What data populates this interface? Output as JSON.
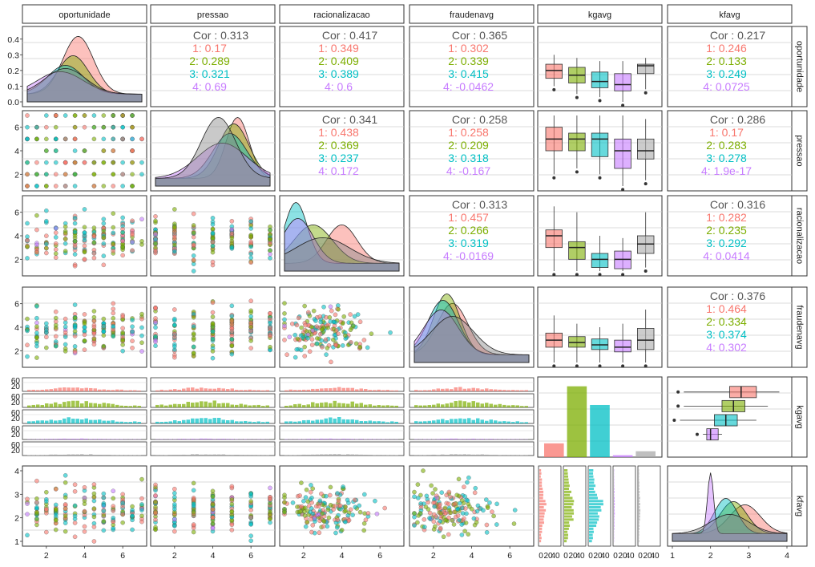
{
  "chart_data": {
    "type": "scatterplot-matrix",
    "variables": [
      "oportunidade",
      "pressao",
      "racionalizacao",
      "fraudenavg",
      "kgavg",
      "kfavg"
    ],
    "groups": [
      "1",
      "2",
      "3",
      "4"
    ],
    "colors": {
      "1": "#F8766D",
      "2": "#7CAE00",
      "3": "#00BFC4",
      "4": "#C77CFF",
      "all": "#999999",
      "text": "#555555"
    },
    "correlations": [
      {
        "row": 0,
        "col": 1,
        "overall": "Cor : 0.313",
        "groups": [
          "1: 0.17",
          "2: 0.289",
          "3: 0.321",
          "4: 0.69"
        ]
      },
      {
        "row": 0,
        "col": 2,
        "overall": "Cor : 0.417",
        "groups": [
          "1: 0.349",
          "2: 0.409",
          "3: 0.389",
          "4: 0.6"
        ]
      },
      {
        "row": 0,
        "col": 3,
        "overall": "Cor : 0.365",
        "groups": [
          "1: 0.302",
          "2: 0.339",
          "3: 0.415",
          "4: -0.0462"
        ]
      },
      {
        "row": 0,
        "col": 5,
        "overall": "Cor : 0.217",
        "groups": [
          "1: 0.246",
          "2: 0.133",
          "3: 0.249",
          "4: 0.0725"
        ]
      },
      {
        "row": 1,
        "col": 2,
        "overall": "Cor : 0.341",
        "groups": [
          "1: 0.438",
          "2: 0.369",
          "3: 0.237",
          "4: 0.172"
        ]
      },
      {
        "row": 1,
        "col": 3,
        "overall": "Cor : 0.258",
        "groups": [
          "1: 0.258",
          "2: 0.209",
          "3: 0.318",
          "4: -0.167"
        ]
      },
      {
        "row": 1,
        "col": 5,
        "overall": "Cor : 0.286",
        "groups": [
          "1: 0.17",
          "2: 0.283",
          "3: 0.278",
          "4: 1.9e-17"
        ]
      },
      {
        "row": 2,
        "col": 3,
        "overall": "Cor : 0.313",
        "groups": [
          "1: 0.457",
          "2: 0.266",
          "3: 0.319",
          "4: -0.0169"
        ]
      },
      {
        "row": 2,
        "col": 5,
        "overall": "Cor : 0.316",
        "groups": [
          "1: 0.282",
          "2: 0.235",
          "3: 0.292",
          "4: 0.0414"
        ]
      },
      {
        "row": 3,
        "col": 5,
        "overall": "Cor : 0.376",
        "groups": [
          "1: 0.464",
          "2: 0.334",
          "3: 0.374",
          "4: 0.302"
        ]
      }
    ],
    "kgavg_counts": [
      14,
      72,
      53,
      2,
      6
    ],
    "kgavg_count_ylim": [
      0,
      75
    ],
    "boxplots_by_group": {
      "oportunidade": [
        [
          0.15,
          0.2,
          0.24,
          0.1,
          0.3
        ],
        [
          0.12,
          0.17,
          0.22,
          0.05,
          0.28
        ],
        [
          0.09,
          0.13,
          0.19,
          0.03,
          0.26
        ],
        [
          0.07,
          0.11,
          0.18,
          0.0,
          0.26
        ],
        [
          0.18,
          0.23,
          0.24,
          0.08,
          0.28
        ]
      ],
      "pressao": [
        [
          4,
          5,
          6,
          2,
          7
        ],
        [
          4,
          5,
          5.5,
          2.5,
          7
        ],
        [
          3.5,
          5,
          5.5,
          2,
          7
        ],
        [
          2.5,
          4,
          5,
          1,
          7
        ],
        [
          3.3,
          4,
          5,
          1.5,
          6.7
        ]
      ],
      "racionalizacao": [
        [
          3,
          4,
          4.5,
          1,
          6.5
        ],
        [
          2,
          3,
          3.5,
          1,
          6
        ],
        [
          1.3,
          2,
          2.5,
          1,
          4
        ],
        [
          1.2,
          2,
          2.7,
          1,
          3.8
        ],
        [
          2.5,
          3.3,
          4,
          1.3,
          6
        ]
      ],
      "fraudenavg": [
        [
          2.3,
          2.9,
          3.5,
          1,
          5
        ],
        [
          2.3,
          2.7,
          3.2,
          1,
          4.3
        ],
        [
          2.1,
          2.5,
          3.0,
          1,
          4
        ],
        [
          1.9,
          2.3,
          2.9,
          1,
          4.3
        ],
        [
          2.1,
          2.9,
          3.9,
          1,
          5.5
        ]
      ],
      "kfavg": [
        [
          2.5,
          2.8,
          3.2,
          1.3,
          3.8
        ],
        [
          2.3,
          2.6,
          2.9,
          1.3,
          3.5
        ],
        [
          2.1,
          2.4,
          2.7,
          1.2,
          3.2
        ],
        [
          1.9,
          2.0,
          2.2,
          1.8,
          2.3
        ],
        [
          2.1,
          2.5,
          3.0,
          1.2,
          3.8
        ]
      ]
    },
    "axis_ticks": {
      "oportunidade": [
        0.0,
        0.1,
        0.2,
        0.3,
        0.4
      ],
      "pressao": [
        2,
        4,
        6
      ],
      "racionalizacao": [
        2,
        4,
        6
      ],
      "fraudenavg": [
        2,
        4,
        6
      ],
      "kgavg": [
        0,
        20,
        40,
        60
      ],
      "kfavg": [
        1,
        2,
        3,
        4
      ]
    },
    "x_tick_labels_bottom": {
      "oportunidade": [
        "2",
        "4",
        "6"
      ],
      "pressao": [
        "2",
        "4",
        "6"
      ],
      "racionalizacao": [
        "2",
        "4",
        "6"
      ],
      "fraudenavg": [
        "2",
        "4",
        "6"
      ],
      "kgavg": [
        "0",
        "20",
        "40",
        "0",
        "20",
        "40",
        "0",
        "20",
        "40",
        "0",
        "20",
        "40",
        "0",
        "20",
        "40"
      ],
      "kfavg": [
        "1",
        "2",
        "3",
        "4"
      ]
    },
    "y_tick_labels_left": {
      "oportunidade": [
        "0.0",
        "0.1",
        "0.2",
        "0.3",
        "0.4"
      ],
      "pressao": [
        "2",
        "4",
        "6"
      ],
      "racionalizacao": [
        "2",
        "4",
        "6"
      ],
      "fraudenavg": [
        "2",
        "4",
        "6"
      ],
      "kgavg": [
        "0",
        "20",
        "40",
        "60",
        "0",
        "20",
        "40",
        "60",
        "0",
        "20",
        "40",
        "60",
        "0",
        "20",
        "40",
        "60",
        "0",
        "20",
        "40",
        "60"
      ],
      "kfavg": [
        "1",
        "2",
        "3",
        "4"
      ]
    }
  }
}
